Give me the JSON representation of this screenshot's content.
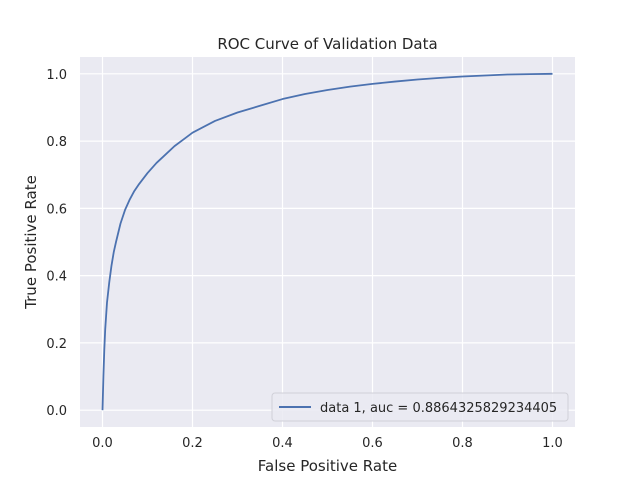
{
  "chart_data": {
    "type": "line",
    "title": "ROC Curve of Validation Data",
    "xlabel": "False Positive Rate",
    "ylabel": "True Positive Rate",
    "xlim": [
      -0.05,
      1.05
    ],
    "ylim": [
      -0.05,
      1.05
    ],
    "xticks": [
      0.0,
      0.2,
      0.4,
      0.6,
      0.8,
      1.0
    ],
    "yticks": [
      0.0,
      0.2,
      0.4,
      0.6,
      0.8,
      1.0
    ],
    "xtick_labels": [
      "0.0",
      "0.2",
      "0.4",
      "0.6",
      "0.8",
      "1.0"
    ],
    "ytick_labels": [
      "0.0",
      "0.2",
      "0.4",
      "0.6",
      "0.8",
      "1.0"
    ],
    "grid": true,
    "legend_position": "lower-right",
    "background_color": "#eaeaf2",
    "grid_color": "#ffffff",
    "series": [
      {
        "name": "data 1, auc = 0.8864325829234405",
        "color": "#4c72b0",
        "x": [
          0.0,
          0.002,
          0.004,
          0.006,
          0.008,
          0.01,
          0.015,
          0.02,
          0.025,
          0.03,
          0.04,
          0.05,
          0.06,
          0.07,
          0.08,
          0.1,
          0.12,
          0.14,
          0.16,
          0.18,
          0.2,
          0.25,
          0.3,
          0.35,
          0.4,
          0.45,
          0.5,
          0.55,
          0.6,
          0.65,
          0.7,
          0.75,
          0.8,
          0.85,
          0.9,
          0.95,
          1.0
        ],
        "y": [
          0.0,
          0.1,
          0.18,
          0.24,
          0.28,
          0.32,
          0.38,
          0.43,
          0.47,
          0.5,
          0.555,
          0.595,
          0.625,
          0.65,
          0.67,
          0.705,
          0.735,
          0.76,
          0.785,
          0.805,
          0.825,
          0.86,
          0.885,
          0.905,
          0.925,
          0.94,
          0.952,
          0.962,
          0.97,
          0.977,
          0.983,
          0.988,
          0.992,
          0.995,
          0.998,
          0.999,
          1.0
        ]
      }
    ]
  }
}
